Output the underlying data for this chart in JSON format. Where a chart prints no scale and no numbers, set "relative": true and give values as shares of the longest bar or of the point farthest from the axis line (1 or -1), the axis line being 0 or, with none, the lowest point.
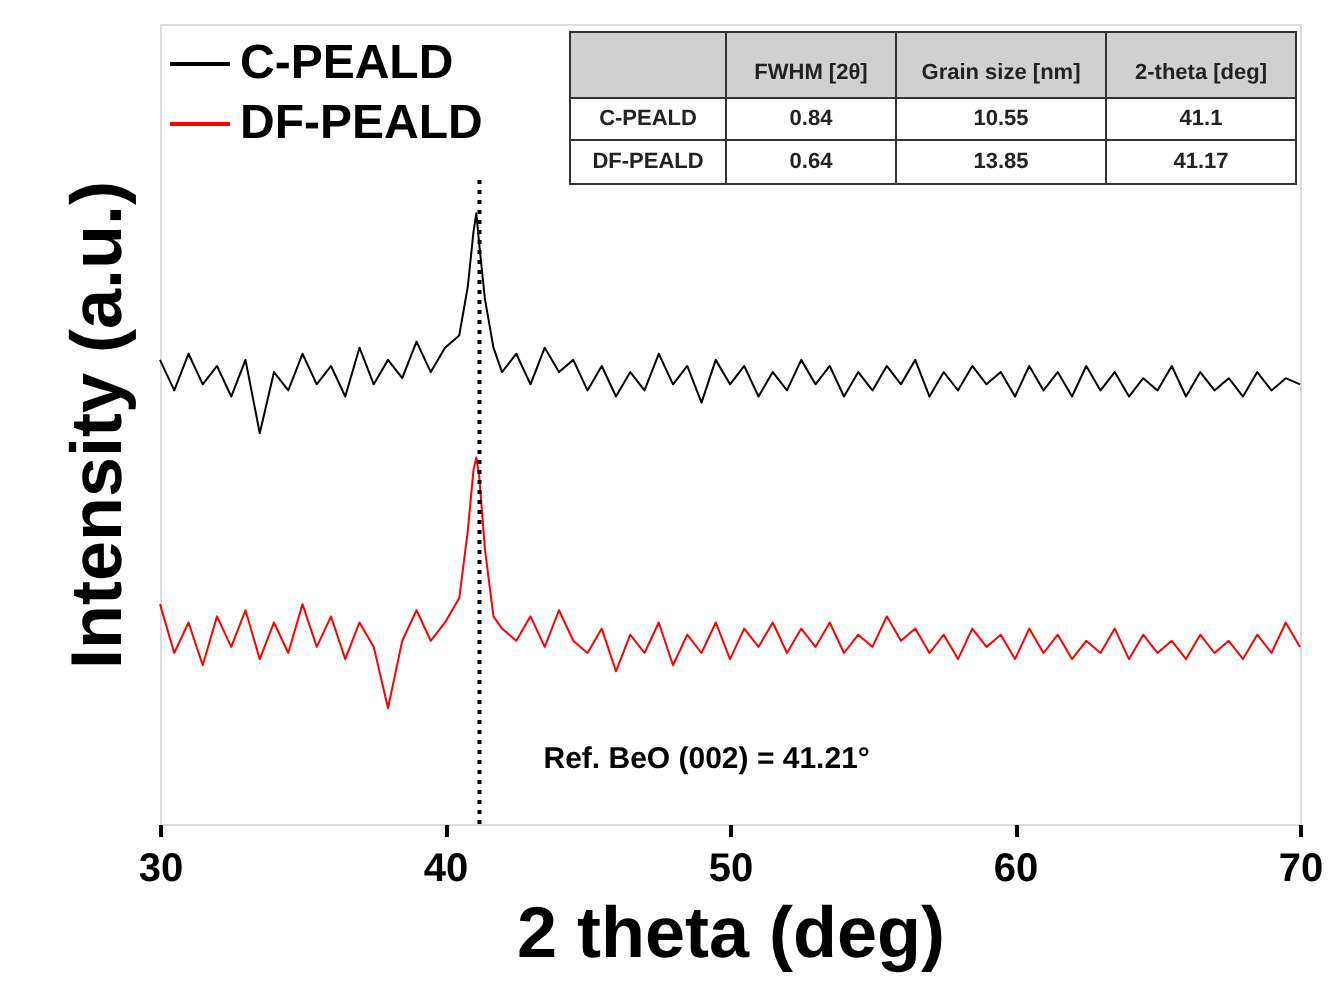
{
  "chart_data": {
    "type": "line",
    "xlabel": "2 theta (deg)",
    "ylabel": "Intensity (a.u.)",
    "relative": true,
    "xlim": [
      30,
      70
    ],
    "xticks": [
      30,
      40,
      50,
      60,
      70
    ],
    "legend": "top left",
    "marker": "none",
    "line_style": "solid",
    "grid": false,
    "x": [
      30,
      30.5,
      31,
      31.5,
      32,
      32.5,
      33,
      33.5,
      34,
      34.5,
      35,
      35.5,
      36,
      36.5,
      37,
      37.5,
      38,
      38.5,
      39,
      39.5,
      40,
      40.5,
      40.8,
      41,
      41.1,
      41.2,
      41.4,
      41.7,
      42,
      42.5,
      43,
      43.5,
      44,
      44.5,
      45,
      45.5,
      46,
      46.5,
      47,
      47.5,
      48,
      48.5,
      49,
      49.5,
      50,
      50.5,
      51,
      51.5,
      52,
      52.5,
      53,
      53.5,
      54,
      54.5,
      55,
      55.5,
      56,
      56.5,
      57,
      57.5,
      58,
      58.5,
      59,
      59.5,
      60,
      60.5,
      61,
      61.5,
      62,
      62.5,
      63,
      63.5,
      64,
      64.5,
      65,
      65.5,
      66,
      66.5,
      67,
      67.5,
      68,
      68.5,
      69,
      69.5,
      70
    ],
    "series": [
      {
        "name": "C-PEALD",
        "color": "#000000",
        "values": [
          0.76,
          0.71,
          0.77,
          0.72,
          0.75,
          0.7,
          0.76,
          0.64,
          0.74,
          0.71,
          0.77,
          0.72,
          0.75,
          0.7,
          0.78,
          0.72,
          0.76,
          0.73,
          0.79,
          0.74,
          0.78,
          0.8,
          0.88,
          0.97,
          1.0,
          0.95,
          0.86,
          0.78,
          0.74,
          0.77,
          0.72,
          0.78,
          0.74,
          0.76,
          0.71,
          0.75,
          0.7,
          0.74,
          0.71,
          0.77,
          0.72,
          0.75,
          0.69,
          0.76,
          0.72,
          0.75,
          0.7,
          0.74,
          0.71,
          0.76,
          0.72,
          0.75,
          0.7,
          0.74,
          0.71,
          0.75,
          0.72,
          0.76,
          0.7,
          0.74,
          0.71,
          0.75,
          0.72,
          0.74,
          0.7,
          0.75,
          0.71,
          0.74,
          0.7,
          0.75,
          0.71,
          0.74,
          0.7,
          0.73,
          0.71,
          0.75,
          0.7,
          0.74,
          0.71,
          0.73,
          0.7,
          0.74,
          0.71,
          0.73,
          0.72
        ]
      },
      {
        "name": "DF-PEALD",
        "color": "#ff0000",
        "values": [
          0.36,
          0.28,
          0.33,
          0.26,
          0.34,
          0.29,
          0.35,
          0.27,
          0.33,
          0.28,
          0.36,
          0.29,
          0.34,
          0.27,
          0.33,
          0.29,
          0.19,
          0.3,
          0.35,
          0.3,
          0.33,
          0.37,
          0.48,
          0.58,
          0.6,
          0.57,
          0.45,
          0.34,
          0.32,
          0.3,
          0.34,
          0.29,
          0.35,
          0.3,
          0.28,
          0.32,
          0.25,
          0.31,
          0.28,
          0.33,
          0.26,
          0.31,
          0.28,
          0.33,
          0.27,
          0.32,
          0.29,
          0.33,
          0.28,
          0.32,
          0.29,
          0.33,
          0.28,
          0.31,
          0.29,
          0.34,
          0.3,
          0.32,
          0.28,
          0.31,
          0.27,
          0.32,
          0.29,
          0.31,
          0.27,
          0.32,
          0.28,
          0.31,
          0.27,
          0.3,
          0.28,
          0.32,
          0.27,
          0.31,
          0.28,
          0.3,
          0.27,
          0.31,
          0.28,
          0.3,
          0.27,
          0.31,
          0.28,
          0.33,
          0.29
        ]
      }
    ],
    "ref_lines": [
      {
        "axis": "x",
        "value": 41.21,
        "color": "#000000",
        "line_style": "dotted"
      }
    ],
    "annotations": [
      "FWHM [2θ]",
      "Grain size [nm]",
      "2-theta [deg]",
      "C-PEALD",
      "0.84",
      "10.55",
      "41.1",
      "DF-PEALD",
      "0.64",
      "13.85",
      "41.17",
      {
        "text": "Ref. BeO (002) = 41.21°",
        "x": 41.21,
        "y": 0.03
      }
    ]
  }
}
